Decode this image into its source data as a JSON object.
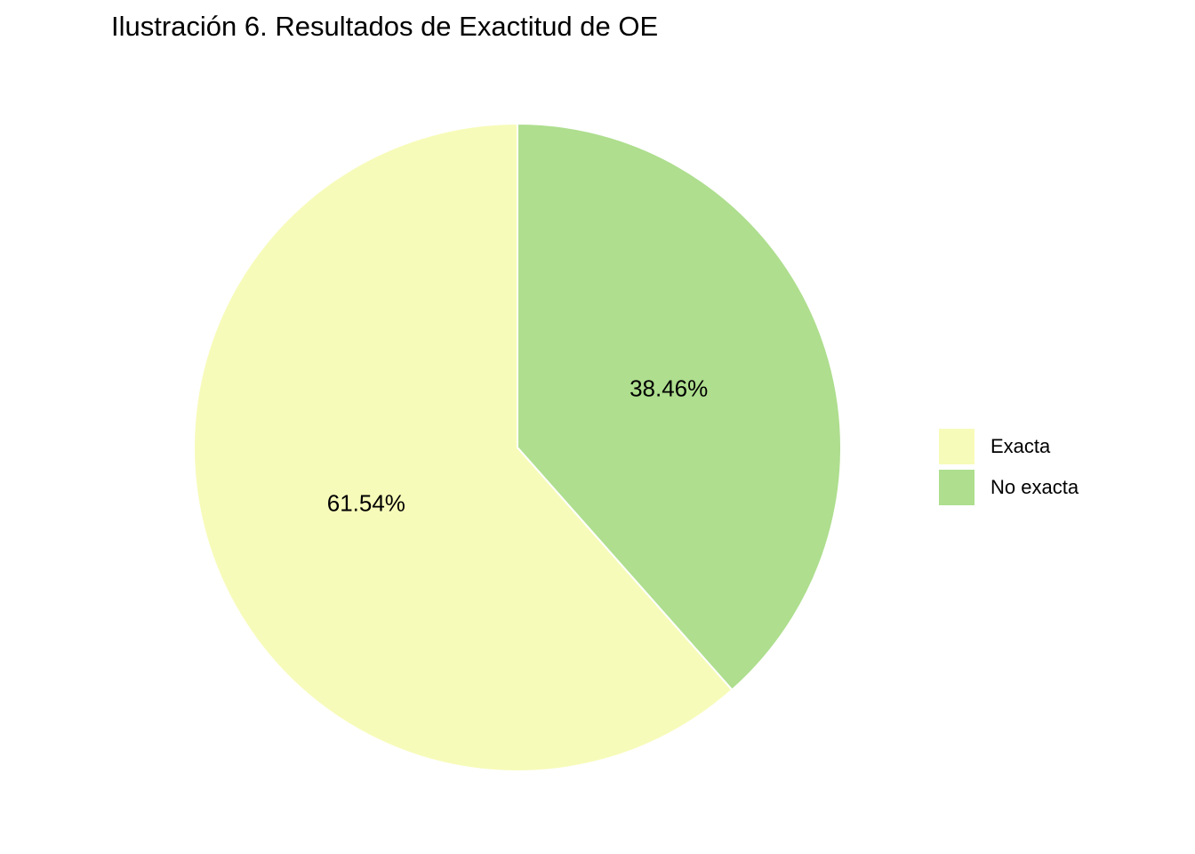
{
  "chart_data": {
    "type": "pie",
    "title": "Ilustración 6. Resultados de Exactitud de OE",
    "categories": [
      "Exacta",
      "No exacta"
    ],
    "values": [
      61.54,
      38.46
    ],
    "labels": [
      "61.54%",
      "38.46%"
    ],
    "colors": [
      "#F7FBB9",
      "#AEDE8E"
    ],
    "slice_border_color": "#FFFFFF",
    "direction": "counterclockwise from top",
    "legend": {
      "position": "right",
      "entries": [
        "Exacta",
        "No exacta"
      ]
    }
  }
}
